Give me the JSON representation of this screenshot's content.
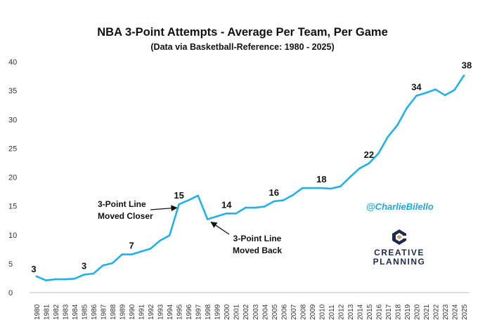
{
  "chart_data": {
    "type": "line",
    "title": "NBA 3-Point Attempts - Average Per Team, Per Game",
    "subtitle": "(Data via Basketball-Reference: 1980 - 2025)",
    "xlabel": "",
    "ylabel": "",
    "ylim": [
      0,
      40
    ],
    "yticks": [
      "0",
      "5",
      "10",
      "15",
      "20",
      "25",
      "30",
      "35",
      "40"
    ],
    "grid": false,
    "line_color": "#1fb2ea",
    "x": [
      "1980",
      "1981",
      "1982",
      "1983",
      "1984",
      "1985",
      "1986",
      "1987",
      "1988",
      "1989",
      "1990",
      "1991",
      "1992",
      "1993",
      "1994",
      "1995",
      "1996",
      "1997",
      "1998",
      "1999",
      "2000",
      "2001",
      "2002",
      "2003",
      "2004",
      "2005",
      "2006",
      "2007",
      "2008",
      "2009",
      "2010",
      "2011",
      "2012",
      "2013",
      "2014",
      "2015",
      "2016",
      "2017",
      "2018",
      "2019",
      "2020",
      "2021",
      "2022",
      "2023",
      "2024",
      "2025"
    ],
    "series": [
      {
        "values": [
          2.8,
          2.1,
          2.3,
          2.3,
          2.4,
          3.1,
          3.3,
          4.7,
          5.1,
          6.6,
          6.6,
          7.1,
          7.6,
          9.0,
          9.9,
          15.3,
          16.0,
          16.8,
          12.7,
          13.2,
          13.7,
          13.7,
          14.7,
          14.7,
          14.9,
          15.8,
          16.0,
          16.9,
          18.1,
          18.1,
          18.1,
          18.0,
          18.4,
          20.0,
          21.5,
          22.4,
          24.1,
          27.0,
          29.0,
          32.0,
          34.1,
          34.6,
          35.2,
          34.2,
          35.1,
          37.6
        ]
      }
    ],
    "data_labels": [
      {
        "x": "1980",
        "text": "3"
      },
      {
        "x": "1985",
        "text": "3"
      },
      {
        "x": "1990",
        "text": "7"
      },
      {
        "x": "1995",
        "text": "15"
      },
      {
        "x": "2000",
        "text": "14"
      },
      {
        "x": "2005",
        "text": "16"
      },
      {
        "x": "2010",
        "text": "18"
      },
      {
        "x": "2015",
        "text": "22"
      },
      {
        "x": "2020",
        "text": "34"
      },
      {
        "x": "2025",
        "text": "38"
      }
    ],
    "annotations": [
      {
        "lines": [
          "3-Point Line",
          "Moved Closer"
        ],
        "target": "1995"
      },
      {
        "lines": [
          "3-Point Line",
          "Moved Back"
        ],
        "target": "1998"
      }
    ]
  },
  "handle": "@CharlieBilello",
  "logo": {
    "line1": "CREATIVE",
    "line2": "PLANNING",
    "colors": [
      "#1d2b4a",
      "#c9a66b"
    ]
  }
}
